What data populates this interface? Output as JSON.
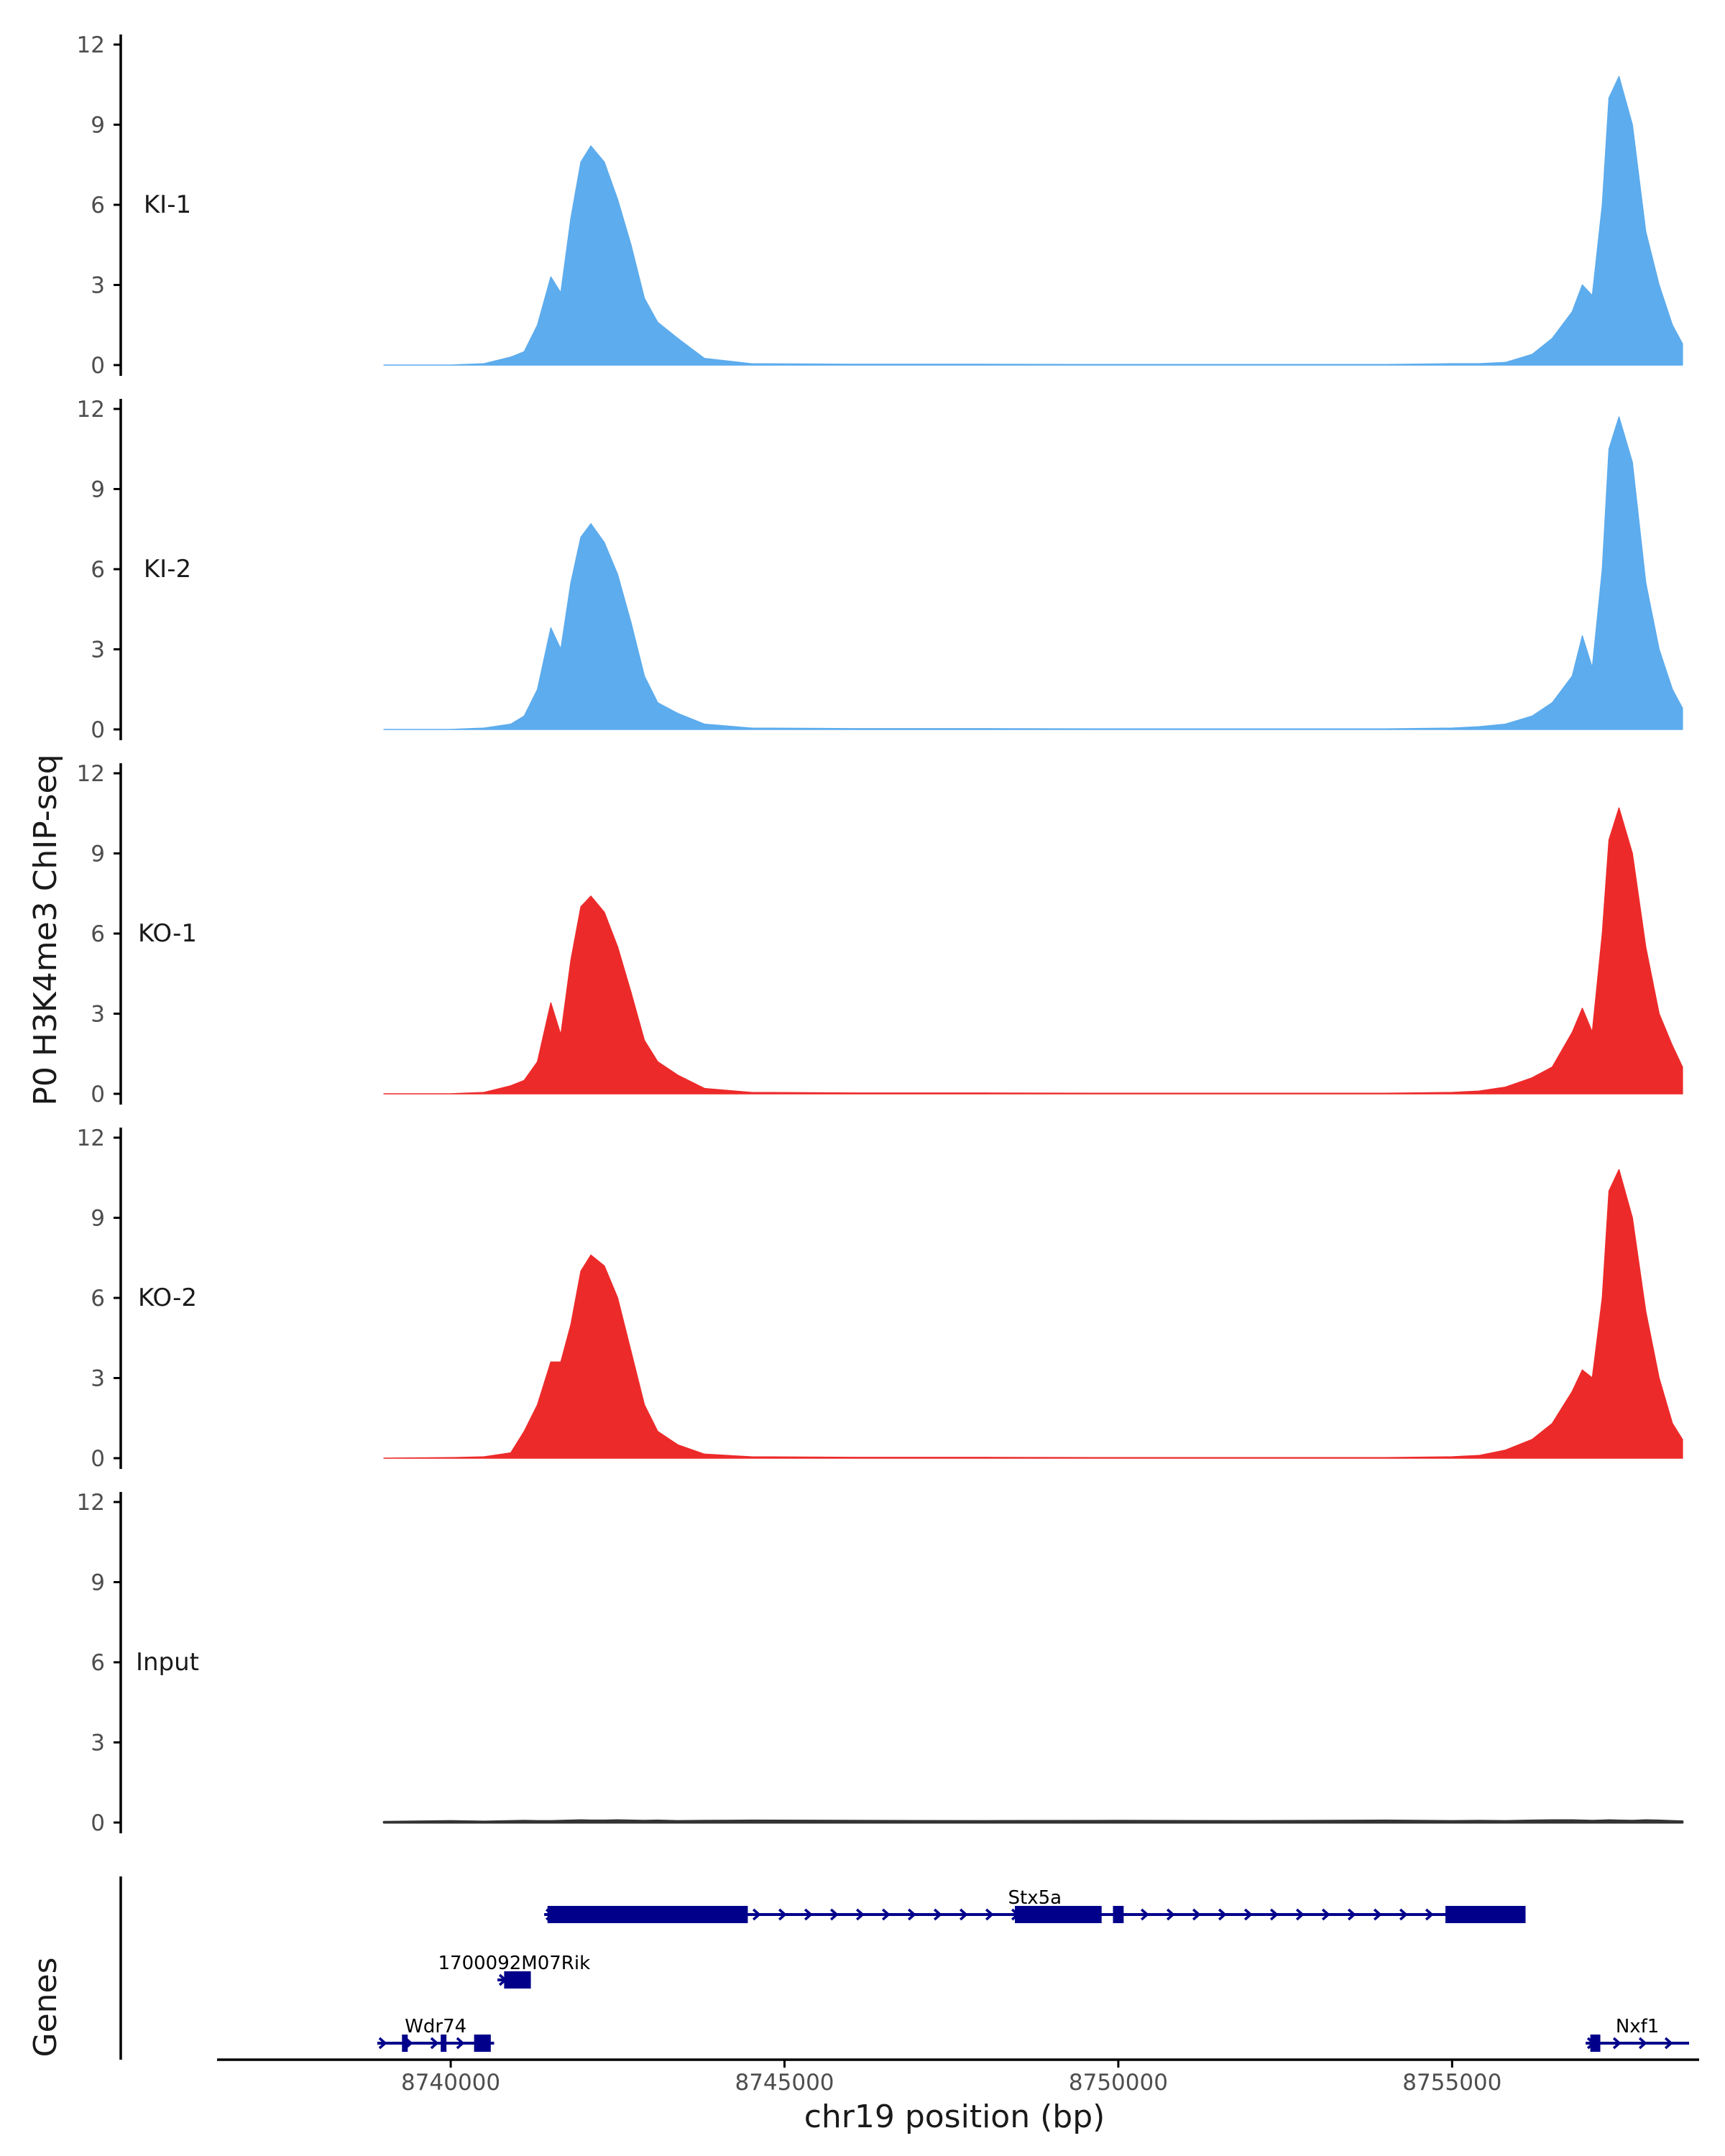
{
  "chart_data": {
    "type": "area",
    "ylabel": "P0 H3K4me3 ChIP-seq",
    "xlabel": "chr19 position (bp)",
    "gene_panel_label": "Genes",
    "xlim": [
      8736500,
      8758700
    ],
    "ylim": [
      0,
      12
    ],
    "y_ticks": [
      0,
      3,
      6,
      9,
      12
    ],
    "x_ticks": [
      8740000,
      8745000,
      8750000,
      8755000
    ],
    "x_tick_labels": [
      "8740000",
      "8745000",
      "8750000",
      "8755000"
    ],
    "colors": {
      "KI": "#5daced",
      "KO": "#ed2a2a",
      "Input": "#333333",
      "genes": "#00008b",
      "axis": "#000000"
    },
    "x": [
      8739000,
      8740000,
      8740500,
      8740900,
      8741100,
      8741300,
      8741500,
      8741650,
      8741800,
      8741950,
      8742100,
      8742300,
      8742500,
      8742700,
      8742900,
      8743100,
      8743400,
      8743800,
      8744500,
      8746000,
      8748000,
      8750000,
      8752000,
      8754000,
      8755000,
      8755400,
      8755800,
      8756200,
      8756500,
      8756800,
      8756950,
      8757100,
      8757250,
      8757350,
      8757500,
      8757700,
      8757900,
      8758100,
      8758300,
      8758450
    ],
    "series": [
      {
        "name": "KI-1",
        "group": "KI",
        "values": [
          0,
          0,
          0.05,
          0.3,
          0.5,
          1.5,
          3.3,
          2.7,
          5.5,
          7.6,
          8.2,
          7.6,
          6.2,
          4.5,
          2.5,
          1.6,
          1.0,
          0.25,
          0.05,
          0.03,
          0.03,
          0.02,
          0.02,
          0.02,
          0.05,
          0.05,
          0.1,
          0.4,
          1.0,
          2.0,
          3.0,
          2.6,
          6.0,
          10.0,
          10.8,
          9.0,
          5.0,
          3.0,
          1.5,
          0.8
        ]
      },
      {
        "name": "KI-2",
        "group": "KI",
        "values": [
          0,
          0,
          0.05,
          0.2,
          0.5,
          1.5,
          3.8,
          3.0,
          5.5,
          7.2,
          7.7,
          7.0,
          5.8,
          4.0,
          2.0,
          1.0,
          0.6,
          0.2,
          0.05,
          0.03,
          0.03,
          0.02,
          0.02,
          0.02,
          0.05,
          0.1,
          0.2,
          0.5,
          1.0,
          2.0,
          3.5,
          2.3,
          6.0,
          10.5,
          11.7,
          10.0,
          5.5,
          3.0,
          1.5,
          0.8
        ]
      },
      {
        "name": "KO-1",
        "group": "KO",
        "values": [
          0,
          0,
          0.05,
          0.3,
          0.5,
          1.2,
          3.4,
          2.2,
          5.0,
          7.0,
          7.4,
          6.8,
          5.5,
          3.8,
          2.0,
          1.2,
          0.7,
          0.2,
          0.05,
          0.03,
          0.03,
          0.02,
          0.02,
          0.02,
          0.05,
          0.1,
          0.25,
          0.6,
          1.0,
          2.3,
          3.2,
          2.3,
          6.0,
          9.5,
          10.7,
          9.0,
          5.5,
          3.0,
          1.8,
          1.0
        ]
      },
      {
        "name": "KO-2",
        "group": "KO",
        "values": [
          0,
          0.02,
          0.05,
          0.2,
          1.0,
          2.0,
          3.6,
          3.6,
          5.0,
          7.0,
          7.6,
          7.2,
          6.0,
          4.0,
          2.0,
          1.0,
          0.5,
          0.15,
          0.05,
          0.03,
          0.03,
          0.02,
          0.02,
          0.02,
          0.05,
          0.1,
          0.3,
          0.7,
          1.3,
          2.5,
          3.3,
          3.0,
          6.0,
          10.0,
          10.8,
          9.0,
          5.5,
          3.0,
          1.3,
          0.7
        ]
      },
      {
        "name": "Input",
        "group": "Input",
        "values": [
          0.02,
          0.05,
          0.03,
          0.05,
          0.06,
          0.05,
          0.05,
          0.06,
          0.07,
          0.08,
          0.07,
          0.07,
          0.08,
          0.07,
          0.06,
          0.07,
          0.05,
          0.06,
          0.07,
          0.06,
          0.05,
          0.06,
          0.05,
          0.07,
          0.05,
          0.06,
          0.05,
          0.07,
          0.08,
          0.08,
          0.07,
          0.06,
          0.07,
          0.08,
          0.07,
          0.06,
          0.08,
          0.07,
          0.05,
          0.04
        ]
      }
    ],
    "genes": [
      {
        "name": "Stx5a",
        "strand": "+",
        "row": 1,
        "start": 8741400,
        "end": 8756100,
        "exons": [
          [
            8741450,
            8744450
          ],
          [
            8748450,
            8749750
          ],
          [
            8749920,
            8750080
          ],
          [
            8754900,
            8756100
          ]
        ]
      },
      {
        "name": "1700092M07Rik",
        "strand": "+",
        "row": 2,
        "start": 8740700,
        "end": 8741200,
        "exons": [
          [
            8740800,
            8741200
          ]
        ]
      },
      {
        "name": "Wdr74",
        "strand": "+",
        "row": 3,
        "start": 8738900,
        "end": 8740650,
        "exons": [
          [
            8739270,
            8739330
          ],
          [
            8739850,
            8739930
          ],
          [
            8740350,
            8740600
          ]
        ]
      },
      {
        "name": "Nxf1",
        "strand": "+",
        "row": 3,
        "start": 8757000,
        "end": 8758550,
        "exons": [
          [
            8757070,
            8757220
          ]
        ]
      }
    ]
  }
}
